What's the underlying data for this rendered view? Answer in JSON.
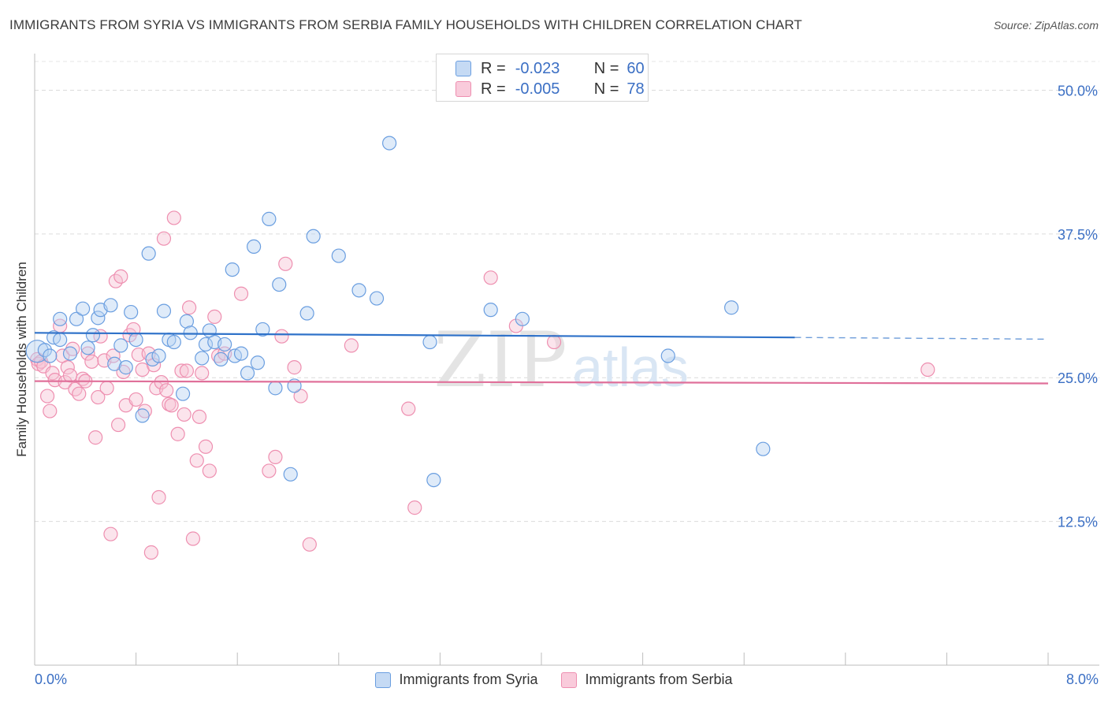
{
  "header": {
    "title": "IMMIGRANTS FROM SYRIA VS IMMIGRANTS FROM SERBIA FAMILY HOUSEHOLDS WITH CHILDREN CORRELATION CHART",
    "source": "Source: ZipAtlas.com"
  },
  "stats": {
    "syria": {
      "r_label": "R =",
      "r_value": "-0.023",
      "n_label": "N =",
      "n_value": "60"
    },
    "serbia": {
      "r_label": "R =",
      "r_value": "-0.005",
      "n_label": "N =",
      "n_value": "78"
    }
  },
  "watermark": {
    "zip": "ZIP",
    "atlas": "atlas"
  },
  "colors": {
    "syria": "#6a9ee0",
    "syria_line": "#2f72c9",
    "serbia": "#ee8fb0",
    "serbia_line": "#e0709a",
    "axis_text": "#3b6fc4"
  },
  "chart_data": {
    "type": "scatter",
    "title": "IMMIGRANTS FROM SYRIA VS IMMIGRANTS FROM SERBIA FAMILY HOUSEHOLDS WITH CHILDREN CORRELATION CHART",
    "xlabel": "",
    "ylabel": "Family Households with Children",
    "xlim": [
      0,
      8
    ],
    "ylim": [
      0,
      52.5
    ],
    "x_tick_labels": [
      "0.0%",
      "8.0%"
    ],
    "y_ticks": [
      12.5,
      25.0,
      37.5,
      50.0
    ],
    "y_tick_labels": [
      "12.5%",
      "25.0%",
      "37.5%",
      "50.0%"
    ],
    "legend_position": "bottom-center",
    "series": [
      {
        "name": "Immigrants from Syria",
        "trend": {
          "x0": 0,
          "y0": 28.9,
          "x1": 6.0,
          "y1": 28.5,
          "dashed_to": 8.0,
          "y_end": 28.35
        },
        "points": [
          [
            0.02,
            27.3
          ],
          [
            0.08,
            27.4
          ],
          [
            0.12,
            26.9
          ],
          [
            0.15,
            28.5
          ],
          [
            0.2,
            28.3
          ],
          [
            0.2,
            30.1
          ],
          [
            0.28,
            27.1
          ],
          [
            0.33,
            30.1
          ],
          [
            0.38,
            31.0
          ],
          [
            0.42,
            27.6
          ],
          [
            0.46,
            28.7
          ],
          [
            0.5,
            30.2
          ],
          [
            0.52,
            30.9
          ],
          [
            0.6,
            31.3
          ],
          [
            0.63,
            26.2
          ],
          [
            0.68,
            27.8
          ],
          [
            0.72,
            25.9
          ],
          [
            0.76,
            30.7
          ],
          [
            0.8,
            28.3
          ],
          [
            0.85,
            21.7
          ],
          [
            0.9,
            35.8
          ],
          [
            0.93,
            26.6
          ],
          [
            0.98,
            26.9
          ],
          [
            1.02,
            30.8
          ],
          [
            1.06,
            28.3
          ],
          [
            1.1,
            28.1
          ],
          [
            1.17,
            23.6
          ],
          [
            1.2,
            29.9
          ],
          [
            1.23,
            28.9
          ],
          [
            1.32,
            26.7
          ],
          [
            1.35,
            27.9
          ],
          [
            1.38,
            29.1
          ],
          [
            1.42,
            28.1
          ],
          [
            1.47,
            26.6
          ],
          [
            1.5,
            27.9
          ],
          [
            1.56,
            34.4
          ],
          [
            1.58,
            26.9
          ],
          [
            1.63,
            27.1
          ],
          [
            1.68,
            25.4
          ],
          [
            1.73,
            36.4
          ],
          [
            1.76,
            26.3
          ],
          [
            1.8,
            29.2
          ],
          [
            1.85,
            38.8
          ],
          [
            1.9,
            24.1
          ],
          [
            1.93,
            33.1
          ],
          [
            2.02,
            16.6
          ],
          [
            2.05,
            24.3
          ],
          [
            2.15,
            30.6
          ],
          [
            2.2,
            37.3
          ],
          [
            2.4,
            35.6
          ],
          [
            2.56,
            32.6
          ],
          [
            2.7,
            31.9
          ],
          [
            2.8,
            45.4
          ],
          [
            3.12,
            28.1
          ],
          [
            3.15,
            16.1
          ],
          [
            3.6,
            30.9
          ],
          [
            3.85,
            30.1
          ],
          [
            5.0,
            26.9
          ],
          [
            5.5,
            31.1
          ],
          [
            5.75,
            18.8
          ]
        ]
      },
      {
        "name": "Immigrants from Serbia",
        "trend": {
          "x0": 0,
          "y0": 24.7,
          "x1": 8.0,
          "y1": 24.5
        },
        "points": [
          [
            0.02,
            26.6
          ],
          [
            0.03,
            26.2
          ],
          [
            0.05,
            26.4
          ],
          [
            0.07,
            26.0
          ],
          [
            0.1,
            23.4
          ],
          [
            0.12,
            22.1
          ],
          [
            0.14,
            25.4
          ],
          [
            0.16,
            24.8
          ],
          [
            0.2,
            29.5
          ],
          [
            0.22,
            26.9
          ],
          [
            0.24,
            24.6
          ],
          [
            0.26,
            25.9
          ],
          [
            0.28,
            25.2
          ],
          [
            0.3,
            27.5
          ],
          [
            0.32,
            24.0
          ],
          [
            0.35,
            23.6
          ],
          [
            0.38,
            24.9
          ],
          [
            0.4,
            24.7
          ],
          [
            0.42,
            27.1
          ],
          [
            0.45,
            26.4
          ],
          [
            0.48,
            19.8
          ],
          [
            0.5,
            23.3
          ],
          [
            0.52,
            28.6
          ],
          [
            0.55,
            26.5
          ],
          [
            0.57,
            24.1
          ],
          [
            0.6,
            11.4
          ],
          [
            0.62,
            26.9
          ],
          [
            0.64,
            33.4
          ],
          [
            0.66,
            20.9
          ],
          [
            0.68,
            33.8
          ],
          [
            0.7,
            25.5
          ],
          [
            0.72,
            22.6
          ],
          [
            0.75,
            28.7
          ],
          [
            0.78,
            29.2
          ],
          [
            0.8,
            23.1
          ],
          [
            0.82,
            27.0
          ],
          [
            0.85,
            25.7
          ],
          [
            0.87,
            22.1
          ],
          [
            0.9,
            27.1
          ],
          [
            0.92,
            9.8
          ],
          [
            0.94,
            26.1
          ],
          [
            0.96,
            24.1
          ],
          [
            0.98,
            14.6
          ],
          [
            1.0,
            24.6
          ],
          [
            1.02,
            37.1
          ],
          [
            1.04,
            23.9
          ],
          [
            1.06,
            22.7
          ],
          [
            1.08,
            22.6
          ],
          [
            1.1,
            38.9
          ],
          [
            1.13,
            20.1
          ],
          [
            1.16,
            25.6
          ],
          [
            1.18,
            21.8
          ],
          [
            1.2,
            25.6
          ],
          [
            1.22,
            31.1
          ],
          [
            1.25,
            11.0
          ],
          [
            1.28,
            17.8
          ],
          [
            1.3,
            21.6
          ],
          [
            1.32,
            25.4
          ],
          [
            1.35,
            19.0
          ],
          [
            1.38,
            16.9
          ],
          [
            1.42,
            30.3
          ],
          [
            1.45,
            26.9
          ],
          [
            1.5,
            27.1
          ],
          [
            1.63,
            32.3
          ],
          [
            1.85,
            16.9
          ],
          [
            1.9,
            18.1
          ],
          [
            1.95,
            28.6
          ],
          [
            1.98,
            34.9
          ],
          [
            2.05,
            25.9
          ],
          [
            2.1,
            23.4
          ],
          [
            2.17,
            10.5
          ],
          [
            2.5,
            27.8
          ],
          [
            2.95,
            22.3
          ],
          [
            3.0,
            13.7
          ],
          [
            3.6,
            33.7
          ],
          [
            3.8,
            29.5
          ],
          [
            4.1,
            28.1
          ],
          [
            7.05,
            25.7
          ]
        ]
      }
    ]
  },
  "legend": {
    "syria_label": "Immigrants from Syria",
    "serbia_label": "Immigrants from Serbia"
  }
}
